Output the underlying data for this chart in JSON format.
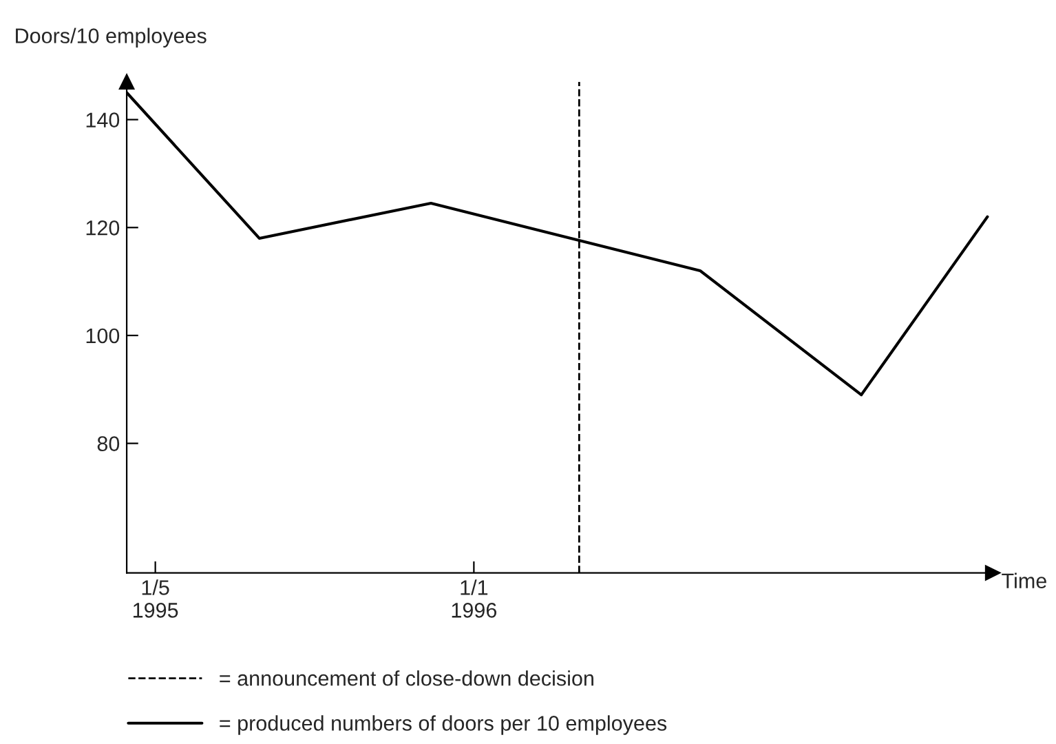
{
  "chart_data": {
    "type": "line",
    "ylabel": "Doors/10 employees",
    "xlabel": "Time",
    "x": [
      "1995-04-09",
      "1995-07-20",
      "1995-11-29",
      "1996-06-23",
      "1996-10-25",
      "1997-01-30"
    ],
    "series": [
      {
        "name": "= produced numbers of doors per 10 employees",
        "color": "#000000",
        "values": [
          145,
          118,
          124.5,
          112,
          89,
          122
        ]
      }
    ],
    "xlim": [
      "1995-04-09",
      "1997-02-03"
    ],
    "ylim": [
      56,
      147
    ],
    "xticks": [
      {
        "value": "1995-05-01",
        "label": "1/5\n1995"
      },
      {
        "value": "1996-01-01",
        "label": "1/1\n1996"
      }
    ],
    "yticks": [
      80,
      100,
      120,
      140
    ],
    "ref_lines": [
      {
        "axis": "x",
        "value": "1996-03-22",
        "label": "= announcement of close-down decision",
        "color": "#000000",
        "line_style": "dashed"
      }
    ],
    "grid": false,
    "legend": "bottom",
    "marker": "none",
    "line_style": "solid"
  }
}
